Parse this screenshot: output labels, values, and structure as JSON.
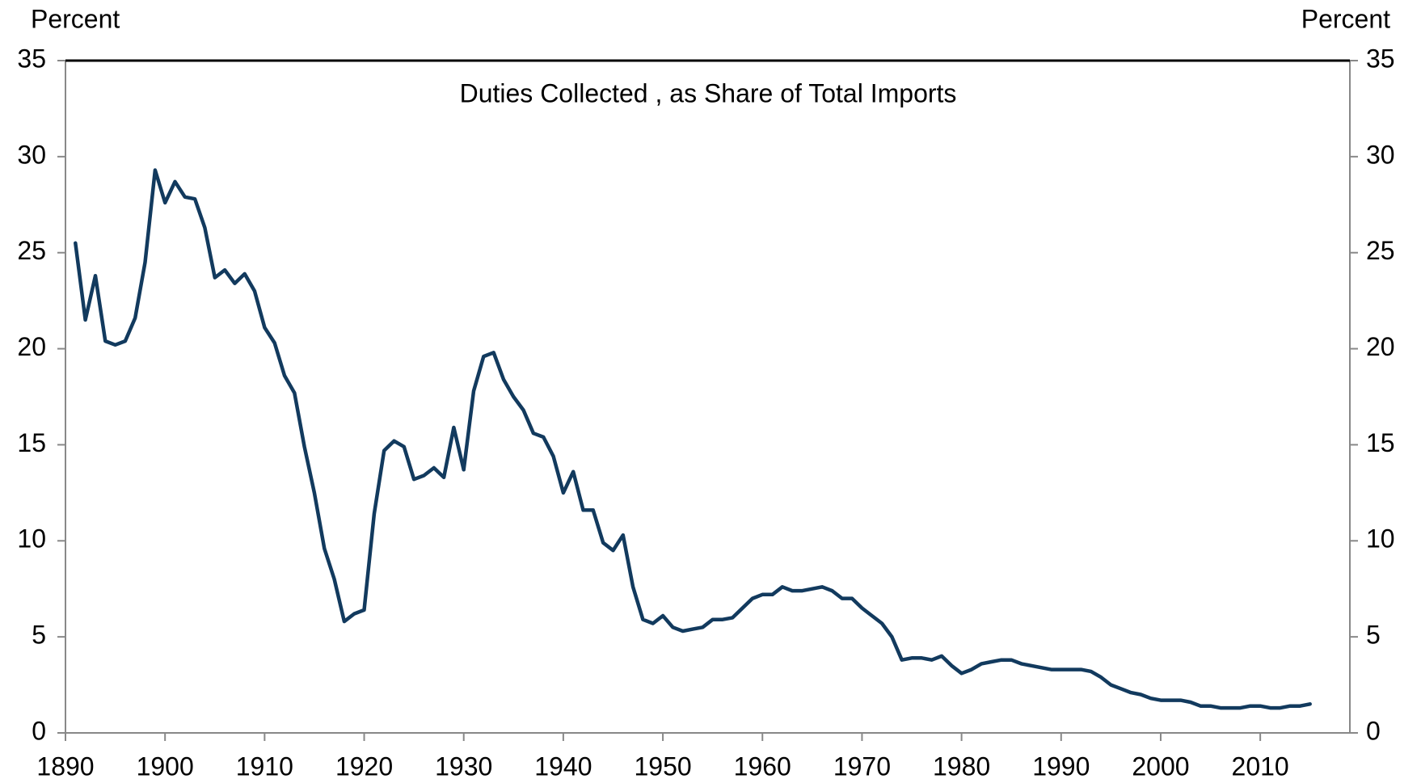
{
  "chart_data": {
    "type": "line",
    "title": "Duties Collected , as Share of Total Imports",
    "ylabel": "Percent",
    "y2label": "Percent",
    "x": [
      1891,
      1892,
      1893,
      1894,
      1895,
      1896,
      1897,
      1898,
      1899,
      1900,
      1901,
      1902,
      1903,
      1904,
      1905,
      1906,
      1907,
      1908,
      1909,
      1910,
      1911,
      1912,
      1913,
      1914,
      1915,
      1916,
      1917,
      1918,
      1919,
      1920,
      1921,
      1922,
      1923,
      1924,
      1925,
      1926,
      1927,
      1928,
      1929,
      1930,
      1931,
      1932,
      1933,
      1934,
      1935,
      1936,
      1937,
      1938,
      1939,
      1940,
      1941,
      1942,
      1943,
      1944,
      1945,
      1946,
      1947,
      1948,
      1949,
      1950,
      1951,
      1952,
      1953,
      1954,
      1955,
      1956,
      1957,
      1958,
      1959,
      1960,
      1961,
      1962,
      1963,
      1964,
      1965,
      1966,
      1967,
      1968,
      1969,
      1970,
      1971,
      1972,
      1973,
      1974,
      1975,
      1976,
      1977,
      1978,
      1979,
      1980,
      1981,
      1982,
      1983,
      1984,
      1985,
      1986,
      1987,
      1988,
      1989,
      1990,
      1991,
      1992,
      1993,
      1994,
      1995,
      1996,
      1997,
      1998,
      1999,
      2000,
      2001,
      2002,
      2003,
      2004,
      2005,
      2006,
      2007,
      2008,
      2009,
      2010,
      2011,
      2012,
      2013,
      2014,
      2015
    ],
    "series": [
      {
        "name": "Duties Collected , as Share of Total Imports",
        "color": "#123a5e",
        "values": [
          25.5,
          21.5,
          23.8,
          20.4,
          20.2,
          20.4,
          21.6,
          24.5,
          29.3,
          27.6,
          28.7,
          27.9,
          27.8,
          26.3,
          23.7,
          24.1,
          23.4,
          23.9,
          23.0,
          21.1,
          20.3,
          18.6,
          17.7,
          14.9,
          12.5,
          9.6,
          8.0,
          5.8,
          6.2,
          6.4,
          11.4,
          14.7,
          15.2,
          14.9,
          13.2,
          13.4,
          13.8,
          13.3,
          15.9,
          13.7,
          17.8,
          19.6,
          19.8,
          18.4,
          17.5,
          16.8,
          15.6,
          15.4,
          14.4,
          12.5,
          13.6,
          11.6,
          11.6,
          9.9,
          9.5,
          10.3,
          7.6,
          5.9,
          5.7,
          6.1,
          5.5,
          5.3,
          5.4,
          5.5,
          5.9,
          5.9,
          6.0,
          6.5,
          7.0,
          7.2,
          7.2,
          7.6,
          7.4,
          7.4,
          7.5,
          7.6,
          7.4,
          7.0,
          7.0,
          6.5,
          6.1,
          5.7,
          5.0,
          3.8,
          3.9,
          3.9,
          3.8,
          4.0,
          3.5,
          3.1,
          3.3,
          3.6,
          3.7,
          3.8,
          3.8,
          3.6,
          3.5,
          3.4,
          3.3,
          3.3,
          3.3,
          3.3,
          3.2,
          2.9,
          2.5,
          2.3,
          2.1,
          2.0,
          1.8,
          1.7,
          1.7,
          1.7,
          1.6,
          1.4,
          1.4,
          1.3,
          1.3,
          1.3,
          1.4,
          1.4,
          1.3,
          1.3,
          1.4,
          1.4,
          1.5
        ]
      }
    ],
    "xlim": [
      1890,
      2019
    ],
    "xticks": [
      1890,
      1900,
      1910,
      1920,
      1930,
      1940,
      1950,
      1960,
      1970,
      1980,
      1990,
      2000,
      2010
    ],
    "ylim": [
      0,
      35
    ],
    "yticks": [
      0,
      5,
      10,
      15,
      20,
      25,
      30,
      35
    ],
    "y2lim": [
      0,
      35
    ],
    "y2ticks": [
      0,
      5,
      10,
      15,
      20,
      25,
      30,
      35
    ],
    "grid": false
  }
}
